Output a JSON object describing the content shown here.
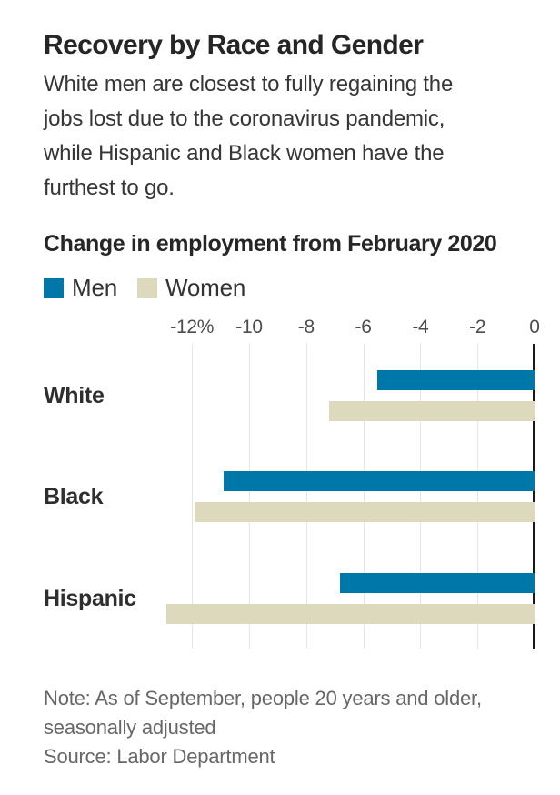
{
  "page": {
    "title": "Recovery by Race and Gender",
    "subtitle": "White men are closest to fully regaining the\njobs lost due to the coronavirus pandemic,\nwhile Hispanic and Black women have the\nfurthest to go."
  },
  "chart_data": {
    "type": "bar",
    "orientation": "horizontal",
    "title": "Change in employment from February 2020",
    "unit": "percent",
    "categories": [
      "White",
      "Black",
      "Hispanic"
    ],
    "series": [
      {
        "name": "Men",
        "color": "#0077a9",
        "values": [
          -5.5,
          -10.9,
          -6.8
        ]
      },
      {
        "name": "Women",
        "color": "#ddd9bc",
        "values": [
          -7.2,
          -11.9,
          -12.9
        ]
      }
    ],
    "xlim": [
      -13.2,
      0
    ],
    "xticks": [
      {
        "value": -12,
        "label": "-12%"
      },
      {
        "value": -10,
        "label": "-10"
      },
      {
        "value": -8,
        "label": "-8"
      },
      {
        "value": -6,
        "label": "-6"
      },
      {
        "value": -4,
        "label": "-4"
      },
      {
        "value": -2,
        "label": "-2"
      },
      {
        "value": 0,
        "label": "0"
      }
    ],
    "grid": true,
    "legend_position": "top-left",
    "grid_color": "#e5e5e5",
    "zero_axis_color": "#1a1a1a"
  },
  "footer": {
    "note": "Note: As of September, people 20 years and older,\nseasonally adjusted",
    "source": "Source: Labor Department"
  }
}
